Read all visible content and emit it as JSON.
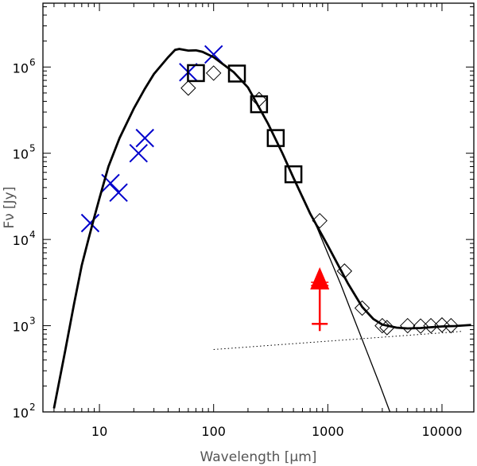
{
  "chart_data": {
    "type": "scatter",
    "title": "",
    "xlabel": "Wavelength [μm]",
    "ylabel": "Fν [Jy]",
    "x_scale": "log",
    "y_scale": "log",
    "xlim": [
      3.2,
      19000
    ],
    "ylim": [
      100,
      5500000
    ],
    "x_ticks": [
      {
        "value": 10,
        "label": "10"
      },
      {
        "value": 100,
        "label": "100"
      },
      {
        "value": 1000,
        "label": "1000"
      },
      {
        "value": 10000,
        "label": "10000"
      }
    ],
    "y_ticks": [
      {
        "value": 100,
        "label": "10",
        "exp": "2"
      },
      {
        "value": 1000,
        "label": "10",
        "exp": "3"
      },
      {
        "value": 10000,
        "label": "10",
        "exp": "4"
      },
      {
        "value": 100000,
        "label": "10",
        "exp": "5"
      },
      {
        "value": 1000000,
        "label": "10",
        "exp": "6"
      }
    ],
    "grid": false,
    "colors": {
      "crosses": "#0000cc",
      "limit": "#ff0000",
      "lines": "#000000"
    },
    "series": [
      {
        "marker": "x",
        "color": "#0000cc",
        "points": [
          [
            8.3,
            15500
          ],
          [
            12.5,
            45000
          ],
          [
            14.7,
            35000
          ],
          [
            22,
            100000
          ],
          [
            25,
            150000
          ],
          [
            60,
            870000
          ],
          [
            100,
            1400000
          ]
        ]
      },
      {
        "marker": "square",
        "color": "#000000",
        "points": [
          [
            70,
            850000
          ],
          [
            160,
            840000
          ],
          [
            250,
            370000
          ],
          [
            350,
            150000
          ],
          [
            500,
            57000
          ]
        ]
      },
      {
        "marker": "diamond",
        "color": "#000000",
        "points": [
          [
            60,
            570000
          ],
          [
            100,
            850000
          ],
          [
            250,
            420000
          ],
          [
            850,
            16500
          ],
          [
            1400,
            4300
          ],
          [
            2000,
            1600
          ],
          [
            3000,
            1000
          ],
          [
            3300,
            950
          ],
          [
            5000,
            1000
          ],
          [
            6500,
            990
          ],
          [
            8000,
            1000
          ],
          [
            10000,
            1020
          ],
          [
            12000,
            1000
          ]
        ]
      },
      {
        "type": "line",
        "style": "thick",
        "points": [
          [
            4,
            110
          ],
          [
            5,
            500
          ],
          [
            6,
            1800
          ],
          [
            7,
            5000
          ],
          [
            8,
            10000
          ],
          [
            9,
            18000
          ],
          [
            10,
            30000
          ],
          [
            12,
            70000
          ],
          [
            15,
            150000
          ],
          [
            20,
            330000
          ],
          [
            25,
            560000
          ],
          [
            30,
            830000
          ],
          [
            40,
            1300000
          ],
          [
            46,
            1580000
          ],
          [
            50,
            1620000
          ],
          [
            60,
            1550000
          ],
          [
            70,
            1560000
          ],
          [
            80,
            1500000
          ],
          [
            100,
            1300000
          ],
          [
            150,
            870000
          ],
          [
            200,
            580000
          ],
          [
            300,
            220000
          ],
          [
            400,
            100000
          ],
          [
            500,
            52000
          ],
          [
            700,
            20000
          ],
          [
            1000,
            8500
          ],
          [
            1500,
            3100
          ],
          [
            2000,
            1650
          ],
          [
            2500,
            1200
          ],
          [
            3000,
            1030
          ],
          [
            4000,
            950
          ],
          [
            5000,
            930
          ],
          [
            6500,
            940
          ],
          [
            8000,
            960
          ],
          [
            10000,
            980
          ],
          [
            13000,
            990
          ],
          [
            16000,
            1010
          ],
          [
            18000,
            1020
          ]
        ]
      },
      {
        "type": "line",
        "style": "thin",
        "points": [
          [
            600,
            32000
          ],
          [
            800,
            14000
          ],
          [
            1000,
            6900
          ],
          [
            1300,
            3000
          ],
          [
            1700,
            1200
          ],
          [
            2200,
            500
          ],
          [
            2800,
            220
          ],
          [
            3500,
            100
          ]
        ]
      },
      {
        "type": "line",
        "style": "dotted",
        "points": [
          [
            100,
            530
          ],
          [
            15000,
            860
          ]
        ]
      },
      {
        "type": "lower_limit",
        "color": "#ff0000",
        "x": 850,
        "y": 1050,
        "arrow_to": 3700
      }
    ]
  }
}
